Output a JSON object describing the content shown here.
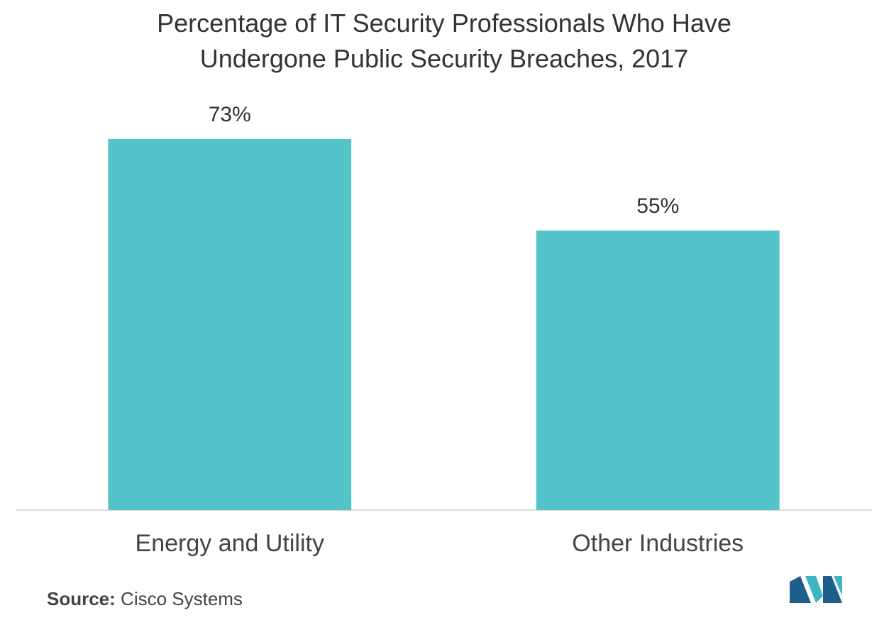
{
  "chart_data": {
    "type": "bar",
    "title": "Percentage of IT Security Professionals Who Have Undergone Public Security Breaches, 2017",
    "categories": [
      "Energy and Utility",
      "Other Industries"
    ],
    "values": [
      73,
      55
    ],
    "value_labels": [
      "73%",
      "55%"
    ],
    "color": "#53c4ca",
    "source_label": "Source:",
    "source": "Cisco Systems"
  }
}
